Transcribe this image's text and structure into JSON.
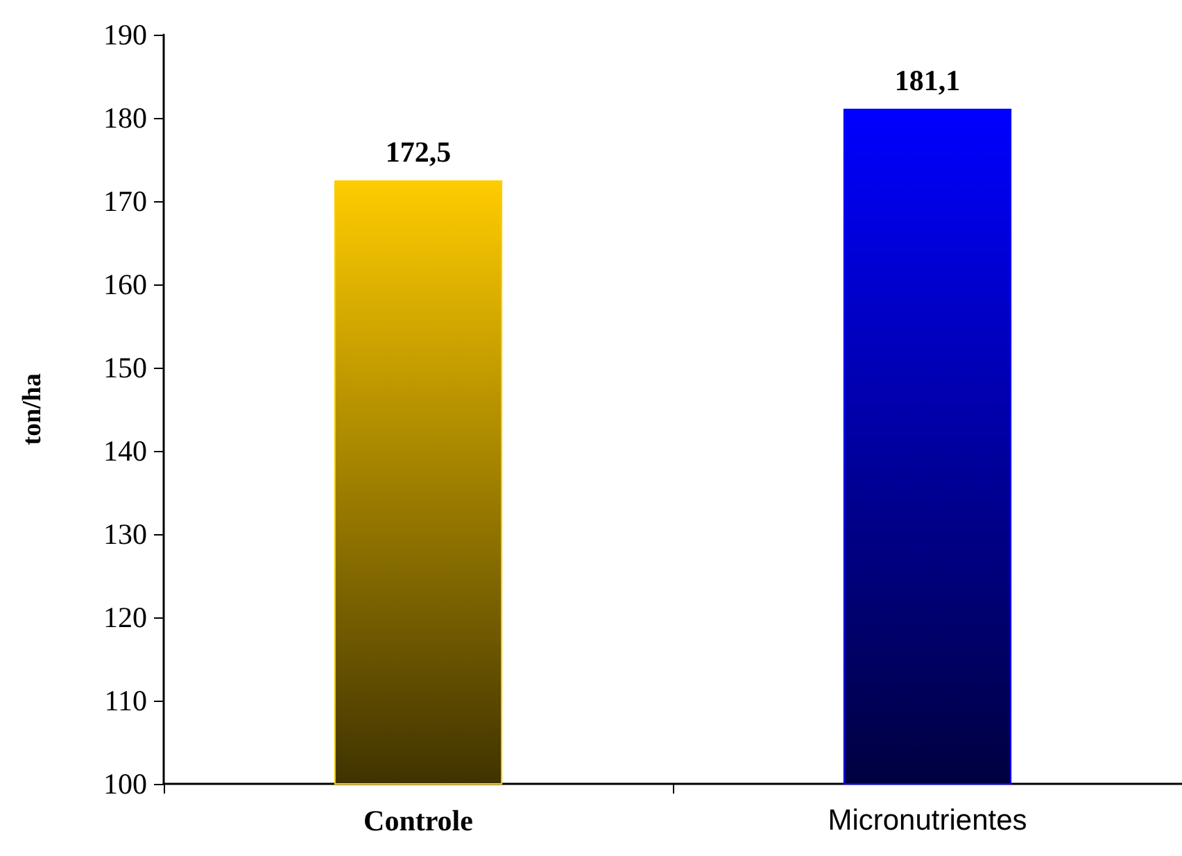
{
  "chart_data": {
    "type": "bar",
    "ylabel": "ton/ha",
    "categories": [
      "Controle",
      "Micronutrientes"
    ],
    "values": [
      172.5,
      181.1
    ],
    "colors": [
      "#ffcc00",
      "#0000ff"
    ],
    "ylim": [
      100,
      190
    ],
    "yticks": [
      100,
      110,
      120,
      130,
      140,
      150,
      160,
      170,
      180,
      190
    ],
    "value_labels": [
      "172,5",
      "181,1"
    ],
    "grid": false
  }
}
